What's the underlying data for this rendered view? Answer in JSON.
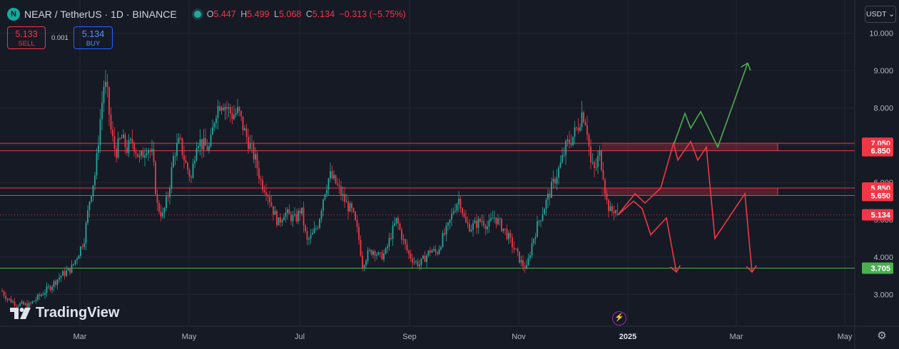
{
  "header": {
    "title": "NEAR / TetherUS · 1D · BINANCE",
    "ohlc": [
      {
        "k": "O",
        "v": "5.447"
      },
      {
        "k": "H",
        "v": "5.499"
      },
      {
        "k": "L",
        "v": "5.068"
      },
      {
        "k": "C",
        "v": "5.134"
      }
    ],
    "change": "−0.313 (−5.75%)"
  },
  "trade": {
    "sell_price": "5.133",
    "sell_label": "SELL",
    "spread": "0.001",
    "buy_price": "5.134",
    "buy_label": "BUY"
  },
  "currency_button": "USDT ⌄",
  "watermark": "TradingView",
  "colors": {
    "up": "#26a69a",
    "down": "#f23645",
    "bg": "#161a25",
    "grid": "#232733",
    "support": "#4caf50",
    "resistance": "#f23645"
  },
  "chart_data": {
    "type": "candlestick",
    "symbol": "NEAR / TetherUS",
    "interval": "1D",
    "exchange": "BINANCE",
    "y_ticks": [
      "10.000",
      "9.000",
      "8.000",
      "7.000",
      "6.000",
      "5.000",
      "4.000",
      "3.000"
    ],
    "y_tick_values": [
      10,
      9,
      8,
      7,
      6,
      5,
      4,
      3
    ],
    "x_ticks": [
      "Mar",
      "May",
      "Jul",
      "Sep",
      "Nov",
      "2025",
      "Mar",
      "May"
    ],
    "price_labels": [
      {
        "text": "7.050",
        "value": 7.05,
        "color": "#f23645"
      },
      {
        "text": "6.850",
        "value": 6.85,
        "color": "#f23645"
      },
      {
        "text": "5.850",
        "value": 5.85,
        "color": "#f23645"
      },
      {
        "text": "5.650",
        "value": 5.65,
        "color": "#f23645"
      },
      {
        "text": "5.134",
        "value": 5.134,
        "color": "#f23645"
      },
      {
        "text": "3.705",
        "value": 3.705,
        "color": "#4caf50"
      }
    ],
    "zones": [
      {
        "top": 7.05,
        "bottom": 6.85
      },
      {
        "top": 5.85,
        "bottom": 5.65
      }
    ],
    "path_points": [
      [
        2,
        3.1
      ],
      [
        10,
        2.9
      ],
      [
        22,
        2.75
      ],
      [
        40,
        2.7
      ],
      [
        55,
        2.95
      ],
      [
        70,
        3.2
      ],
      [
        85,
        3.5
      ],
      [
        100,
        3.7
      ],
      [
        110,
        4.1
      ],
      [
        118,
        4.5
      ],
      [
        126,
        5.6
      ],
      [
        134,
        6.3
      ],
      [
        140,
        7.6
      ],
      [
        146,
        8.7
      ],
      [
        150,
        8.4
      ],
      [
        156,
        7.3
      ],
      [
        162,
        6.8
      ],
      [
        170,
        7.2
      ],
      [
        178,
        6.9
      ],
      [
        186,
        7.1
      ],
      [
        196,
        6.6
      ],
      [
        206,
        7.0
      ],
      [
        214,
        6.7
      ],
      [
        220,
        5.4
      ],
      [
        228,
        5.1
      ],
      [
        236,
        5.7
      ],
      [
        244,
        6.8
      ],
      [
        252,
        7.1
      ],
      [
        260,
        6.5
      ],
      [
        268,
        6.1
      ],
      [
        276,
        7.2
      ],
      [
        284,
        7.0
      ],
      [
        294,
        6.9
      ],
      [
        302,
        7.9
      ],
      [
        310,
        8.2
      ],
      [
        318,
        8.0
      ],
      [
        326,
        7.8
      ],
      [
        334,
        7.9
      ],
      [
        342,
        7.4
      ],
      [
        350,
        7.0
      ],
      [
        358,
        6.6
      ],
      [
        366,
        6.0
      ],
      [
        374,
        5.8
      ],
      [
        382,
        5.3
      ],
      [
        390,
        4.9
      ],
      [
        398,
        5.2
      ],
      [
        406,
        5.1
      ],
      [
        414,
        5.0
      ],
      [
        422,
        5.3
      ],
      [
        430,
        4.4
      ],
      [
        438,
        4.6
      ],
      [
        446,
        4.9
      ],
      [
        454,
        5.7
      ],
      [
        462,
        6.2
      ],
      [
        470,
        6.0
      ],
      [
        478,
        5.7
      ],
      [
        486,
        5.4
      ],
      [
        494,
        5.2
      ],
      [
        502,
        4.6
      ],
      [
        508,
        3.8
      ],
      [
        516,
        4.1
      ],
      [
        524,
        4.2
      ],
      [
        532,
        4.0
      ],
      [
        540,
        4.1
      ],
      [
        548,
        4.6
      ],
      [
        556,
        5.0
      ],
      [
        564,
        4.5
      ],
      [
        572,
        4.1
      ],
      [
        580,
        3.9
      ],
      [
        588,
        3.8
      ],
      [
        596,
        4.0
      ],
      [
        604,
        4.2
      ],
      [
        612,
        4.1
      ],
      [
        620,
        4.5
      ],
      [
        628,
        4.8
      ],
      [
        636,
        5.3
      ],
      [
        644,
        5.6
      ],
      [
        652,
        4.9
      ],
      [
        660,
        4.8
      ],
      [
        668,
        4.9
      ],
      [
        676,
        5.0
      ],
      [
        684,
        4.8
      ],
      [
        692,
        5.1
      ],
      [
        700,
        4.9
      ],
      [
        708,
        4.7
      ],
      [
        716,
        4.4
      ],
      [
        724,
        4.1
      ],
      [
        732,
        3.8
      ],
      [
        738,
        3.7
      ],
      [
        746,
        4.4
      ],
      [
        754,
        4.9
      ],
      [
        762,
        5.3
      ],
      [
        770,
        5.7
      ],
      [
        778,
        6.1
      ],
      [
        786,
        6.5
      ],
      [
        794,
        7.0
      ],
      [
        802,
        7.2
      ],
      [
        810,
        7.5
      ],
      [
        816,
        7.9
      ],
      [
        822,
        7.6
      ],
      [
        828,
        6.5
      ],
      [
        834,
        6.3
      ],
      [
        840,
        6.8
      ],
      [
        846,
        6.2
      ],
      [
        850,
        5.5
      ],
      [
        856,
        5.2
      ],
      [
        862,
        5.3
      ],
      [
        866,
        5.13
      ]
    ],
    "projections": [
      {
        "color": "#4caf50",
        "points": [
          [
            944,
            7.0
          ],
          [
            960,
            7.85
          ],
          [
            968,
            7.45
          ],
          [
            982,
            7.9
          ],
          [
            1006,
            6.95
          ],
          [
            1048,
            9.2
          ]
        ],
        "arrow_end": true
      },
      {
        "color": "#f23645",
        "points": [
          [
            866,
            5.13
          ],
          [
            890,
            5.7
          ],
          [
            904,
            5.45
          ],
          [
            926,
            5.85
          ],
          [
            944,
            7.05
          ],
          [
            950,
            6.6
          ],
          [
            968,
            7.1
          ],
          [
            978,
            6.6
          ],
          [
            990,
            6.95
          ],
          [
            1002,
            4.5
          ],
          [
            1044,
            5.7
          ],
          [
            1054,
            3.6
          ]
        ],
        "arrow_end": true
      },
      {
        "color": "#f23645",
        "points": [
          [
            866,
            5.13
          ],
          [
            888,
            5.5
          ],
          [
            900,
            5.3
          ],
          [
            912,
            4.6
          ],
          [
            934,
            5.05
          ],
          [
            948,
            3.6
          ]
        ],
        "arrow_end": true
      }
    ]
  }
}
